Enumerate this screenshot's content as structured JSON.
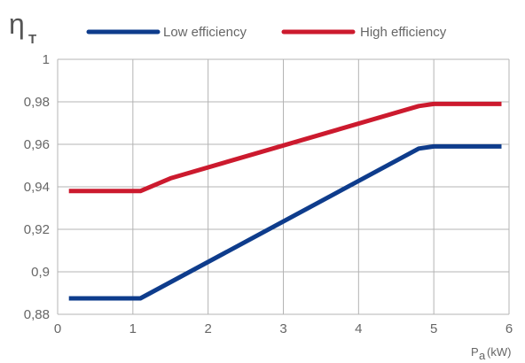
{
  "chart_data": {
    "type": "line",
    "ylabel": {
      "symbol": "η",
      "subscript": "T"
    },
    "xlabel": {
      "symbol": "P",
      "subscript": "a",
      "unit": "(kW)"
    },
    "x_ticks": [
      "0",
      "1",
      "2",
      "3",
      "4",
      "5",
      "6"
    ],
    "y_ticks": [
      "0,88",
      "0,9",
      "0,92",
      "0,94",
      "0,96",
      "0,98",
      "1"
    ],
    "xlim": [
      0,
      6
    ],
    "ylim": [
      0.88,
      1.0
    ],
    "grid": true,
    "legend_position": "top",
    "series": [
      {
        "name": "Low efficiency",
        "color": "#0e3c8c",
        "points": [
          [
            0.15,
            0.8875
          ],
          [
            1.1,
            0.8875
          ],
          [
            4.8,
            0.958
          ],
          [
            5.0,
            0.959
          ],
          [
            5.9,
            0.959
          ]
        ]
      },
      {
        "name": "High efficiency",
        "color": "#cc1a2e",
        "points": [
          [
            0.15,
            0.938
          ],
          [
            1.1,
            0.938
          ],
          [
            1.5,
            0.944
          ],
          [
            4.8,
            0.978
          ],
          [
            5.0,
            0.979
          ],
          [
            5.9,
            0.979
          ]
        ]
      }
    ]
  }
}
